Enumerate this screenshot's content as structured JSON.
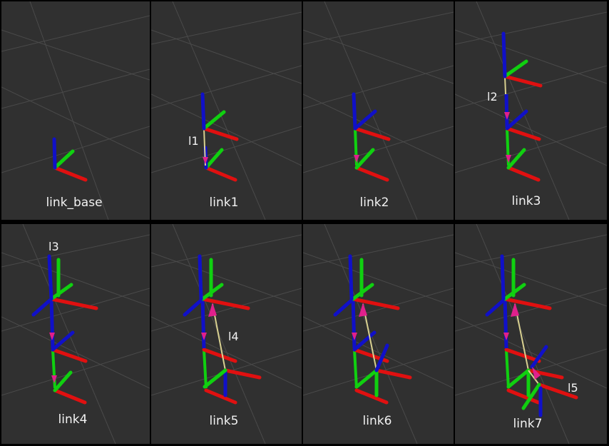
{
  "panels": [
    {
      "label": "link_base"
    },
    {
      "label": "link1",
      "seg_label": "l1"
    },
    {
      "label": "link2"
    },
    {
      "label": "link3",
      "seg_label": "l2"
    },
    {
      "label": "link4",
      "seg_label": "l3"
    },
    {
      "label": "link5",
      "seg_label": "l4"
    },
    {
      "label": "link6"
    },
    {
      "label": "link7",
      "seg_label": "l5"
    }
  ],
  "colors": {
    "background": "#303030",
    "grid_line": "#4a4a4a",
    "x_axis": "#e01010",
    "y_axis": "#10d010",
    "z_axis": "#1010c8",
    "link_line": "#d8d090",
    "arrow": "#e0208c",
    "label_text": "#f2f2f2"
  }
}
